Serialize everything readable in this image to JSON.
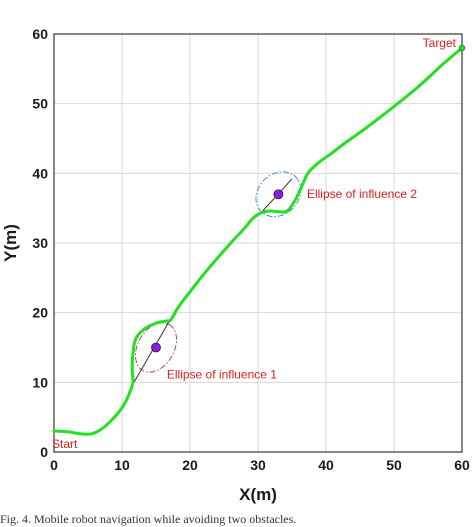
{
  "chart_data": {
    "type": "line",
    "xlabel": "X(m)",
    "ylabel": "Y(m)",
    "xlim": [
      0,
      60
    ],
    "ylim": [
      0,
      60
    ],
    "xticks": [
      0,
      10,
      20,
      30,
      40,
      50,
      60
    ],
    "yticks": [
      0,
      10,
      20,
      30,
      40,
      50,
      60
    ],
    "grid": true,
    "colors": {
      "path": "#22e022",
      "annotation": "#e0201c",
      "obstacle": "#8a1fd6",
      "ellipse1": "#b8465f",
      "ellipse2": "#3a8fd0"
    },
    "series": [
      {
        "type": "line",
        "points": [
          [
            0,
            3.0
          ],
          [
            2,
            2.9
          ],
          [
            4,
            2.6
          ],
          [
            5.5,
            2.6
          ],
          [
            7,
            3.3
          ],
          [
            8.5,
            4.6
          ],
          [
            9.6,
            5.8
          ],
          [
            10.3,
            6.8
          ],
          [
            11.0,
            8.2
          ],
          [
            11.6,
            10.0
          ],
          [
            11.5,
            12.0
          ],
          [
            11.6,
            14.0
          ],
          [
            12.0,
            16.2
          ],
          [
            13.2,
            17.6
          ],
          [
            15.0,
            18.5
          ],
          [
            16.5,
            18.8
          ],
          [
            17.2,
            19.0
          ],
          [
            18.3,
            20.8
          ],
          [
            20.0,
            23.0
          ],
          [
            22.0,
            25.5
          ],
          [
            24.0,
            27.8
          ],
          [
            26.0,
            30.0
          ],
          [
            28.0,
            32.1
          ],
          [
            29.2,
            33.5
          ],
          [
            30.4,
            34.3
          ],
          [
            31.6,
            34.6
          ],
          [
            33.0,
            34.5
          ],
          [
            34.3,
            34.6
          ],
          [
            35.5,
            36.2
          ],
          [
            36.6,
            38.5
          ],
          [
            37.4,
            40.1
          ],
          [
            39.0,
            41.6
          ],
          [
            41.0,
            43.0
          ],
          [
            43.0,
            44.5
          ],
          [
            46.0,
            46.6
          ],
          [
            50.0,
            49.6
          ],
          [
            54.0,
            52.8
          ],
          [
            57.0,
            55.5
          ],
          [
            60.0,
            58.0
          ]
        ]
      },
      {
        "type": "segment",
        "points": [
          [
            11.0,
            8.7
          ],
          [
            17.2,
            19.2
          ]
        ]
      },
      {
        "type": "segment",
        "points": [
          [
            30.4,
            34.3
          ],
          [
            35.0,
            39.2
          ]
        ]
      }
    ],
    "obstacles": [
      {
        "x": 15,
        "y": 15
      },
      {
        "x": 33,
        "y": 37
      }
    ],
    "ellipses": [
      {
        "cx": 15.0,
        "cy": 15.0,
        "rx": 3.9,
        "ry": 2.6,
        "angle": 60
      },
      {
        "cx": 33.0,
        "cy": 37.0,
        "rx": 3.6,
        "ry": 2.9,
        "angle": 45
      }
    ],
    "annotations": [
      {
        "text": "Start",
        "x": 0,
        "y": 2.9
      },
      {
        "text": "Target",
        "x": 60,
        "y": 58.0
      },
      {
        "text": "Ellipse of influence 1",
        "x": 16.6,
        "y": 11.1
      },
      {
        "text": "Ellipse of influence 2",
        "x": 37.2,
        "y": 37.0
      }
    ]
  },
  "caption": "Fig. 4.  Mobile robot navigation while avoiding two obstacles."
}
